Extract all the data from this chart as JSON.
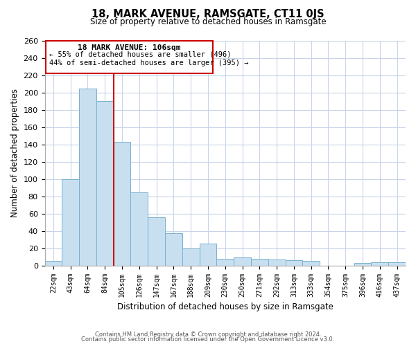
{
  "title": "18, MARK AVENUE, RAMSGATE, CT11 0JS",
  "subtitle": "Size of property relative to detached houses in Ramsgate",
  "xlabel": "Distribution of detached houses by size in Ramsgate",
  "ylabel": "Number of detached properties",
  "bar_color": "#c8dff0",
  "bar_edge_color": "#7ab0ce",
  "categories": [
    "22sqm",
    "43sqm",
    "64sqm",
    "84sqm",
    "105sqm",
    "126sqm",
    "147sqm",
    "167sqm",
    "188sqm",
    "209sqm",
    "230sqm",
    "250sqm",
    "271sqm",
    "292sqm",
    "313sqm",
    "333sqm",
    "354sqm",
    "375sqm",
    "396sqm",
    "416sqm",
    "437sqm"
  ],
  "values": [
    5,
    100,
    205,
    190,
    143,
    85,
    56,
    37,
    20,
    25,
    8,
    9,
    8,
    7,
    6,
    5,
    0,
    0,
    3,
    4,
    4
  ],
  "ylim": [
    0,
    260
  ],
  "yticks": [
    0,
    20,
    40,
    60,
    80,
    100,
    120,
    140,
    160,
    180,
    200,
    220,
    240,
    260
  ],
  "annotation_title": "18 MARK AVENUE: 106sqm",
  "annotation_line1": "← 55% of detached houses are smaller (496)",
  "annotation_line2": "44% of semi-detached houses are larger (395) →",
  "footer1": "Contains HM Land Registry data © Crown copyright and database right 2024.",
  "footer2": "Contains public sector information licensed under the Open Government Licence v3.0.",
  "background_color": "#ffffff",
  "grid_color": "#c8d4e8",
  "vline_bar_index": 3,
  "vline_color": "#cc0000"
}
